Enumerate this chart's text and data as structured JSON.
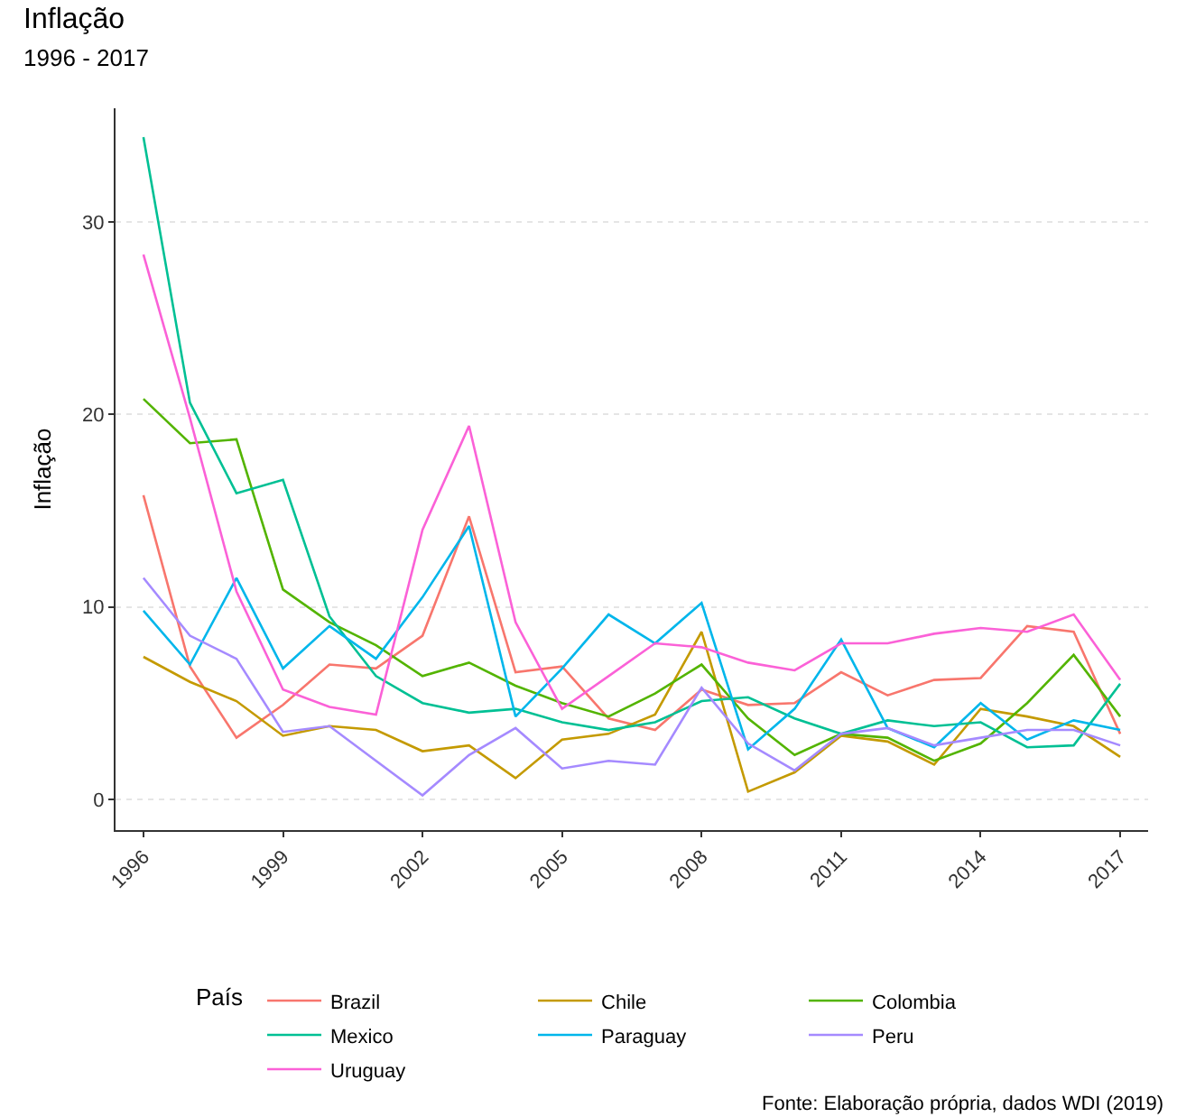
{
  "chart_data": {
    "type": "line",
    "title": "Inflação",
    "subtitle": "1996 - 2017",
    "ylabel": "Inflação",
    "legend_title": "País",
    "annotations": [
      "Fonte: Elaboração própria, dados WDI (2019)"
    ],
    "x": [
      1996,
      1997,
      1998,
      1999,
      2000,
      2001,
      2002,
      2003,
      2004,
      2005,
      2006,
      2007,
      2008,
      2009,
      2010,
      2011,
      2012,
      2013,
      2014,
      2015,
      2016,
      2017
    ],
    "series": [
      {
        "name": "Brazil",
        "color": "#f8766d",
        "values": [
          15.8,
          6.9,
          3.2,
          4.9,
          7.0,
          6.8,
          8.5,
          14.7,
          6.6,
          6.9,
          4.2,
          3.6,
          5.7,
          4.9,
          5.0,
          6.6,
          5.4,
          6.2,
          6.3,
          9.0,
          8.7,
          3.4
        ]
      },
      {
        "name": "Chile",
        "color": "#c49a00",
        "values": [
          7.4,
          6.1,
          5.1,
          3.3,
          3.8,
          3.6,
          2.5,
          2.8,
          1.1,
          3.1,
          3.4,
          4.4,
          8.7,
          0.4,
          1.4,
          3.3,
          3.0,
          1.8,
          4.7,
          4.3,
          3.8,
          2.2
        ]
      },
      {
        "name": "Colombia",
        "color": "#53b400",
        "values": [
          20.8,
          18.5,
          18.7,
          10.9,
          9.2,
          8.0,
          6.4,
          7.1,
          5.9,
          5.0,
          4.3,
          5.5,
          7.0,
          4.2,
          2.3,
          3.4,
          3.2,
          2.0,
          2.9,
          5.0,
          7.5,
          4.3
        ]
      },
      {
        "name": "Mexico",
        "color": "#00c094",
        "values": [
          34.4,
          20.6,
          15.9,
          16.6,
          9.5,
          6.4,
          5.0,
          4.5,
          4.7,
          4.0,
          3.6,
          4.0,
          5.1,
          5.3,
          4.2,
          3.4,
          4.1,
          3.8,
          4.0,
          2.7,
          2.8,
          6.0
        ]
      },
      {
        "name": "Paraguay",
        "color": "#00b6eb",
        "values": [
          9.8,
          7.0,
          11.5,
          6.8,
          9.0,
          7.3,
          10.5,
          14.2,
          4.3,
          6.8,
          9.6,
          8.1,
          10.2,
          2.6,
          4.7,
          8.3,
          3.7,
          2.7,
          5.0,
          3.1,
          4.1,
          3.6
        ]
      },
      {
        "name": "Peru",
        "color": "#a58aff",
        "values": [
          11.5,
          8.5,
          7.3,
          3.5,
          3.8,
          2.0,
          0.2,
          2.3,
          3.7,
          1.6,
          2.0,
          1.8,
          5.8,
          2.9,
          1.5,
          3.4,
          3.7,
          2.8,
          3.2,
          3.6,
          3.6,
          2.8
        ]
      },
      {
        "name": "Uruguay",
        "color": "#fb61d7",
        "values": [
          28.3,
          19.8,
          10.8,
          5.7,
          4.8,
          4.4,
          14.0,
          19.4,
          9.2,
          4.7,
          6.4,
          8.1,
          7.9,
          7.1,
          6.7,
          8.1,
          8.1,
          8.6,
          8.9,
          8.7,
          9.6,
          6.2
        ]
      }
    ],
    "xlim": [
      1995.4,
      2017.6
    ],
    "xticks": [
      1996,
      1999,
      2002,
      2005,
      2008,
      2011,
      2014,
      2017
    ],
    "ylim": [
      -1.6,
      35.9
    ],
    "yticks": [
      0,
      10,
      20,
      30
    ],
    "grid": "y",
    "legend": "bottom",
    "marker": "none",
    "line_style": "solid"
  }
}
